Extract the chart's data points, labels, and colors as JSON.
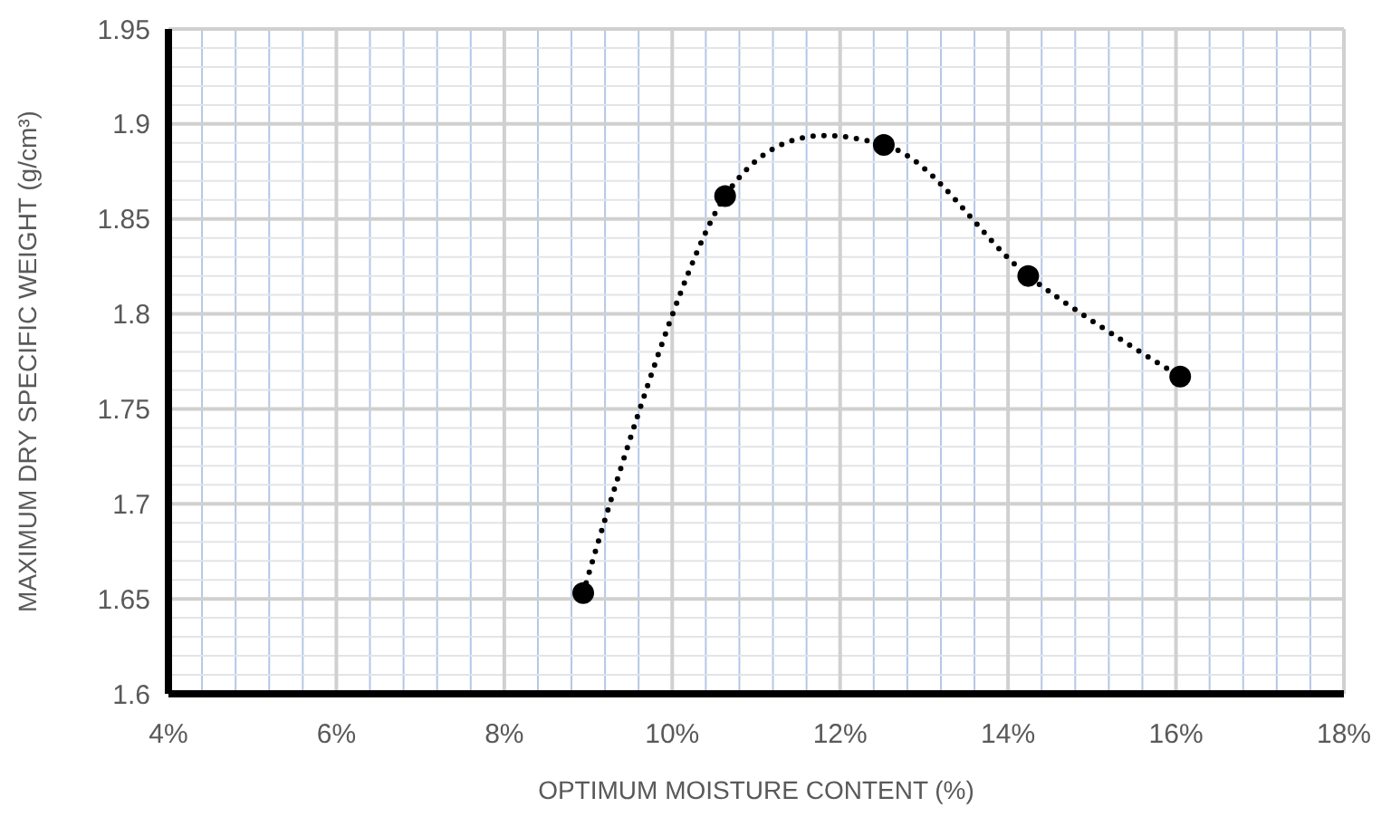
{
  "chart_data": {
    "type": "line",
    "xlabel": "OPTIMUM MOISTURE CONTENT (%)",
    "ylabel": "MAXIMUM DRY SPECIFIC WEIGHT (g/cm³)",
    "x": [
      8.94,
      10.63,
      12.52,
      14.24,
      16.05
    ],
    "series": [
      {
        "color": "#000000",
        "values": [
          1.653,
          1.862,
          1.889,
          1.82,
          1.767
        ]
      }
    ],
    "xlim": [
      4,
      18
    ],
    "xticks": [
      {
        "value": 4,
        "label": "4%"
      },
      {
        "value": 4.4,
        "label": null
      },
      {
        "value": 4.8,
        "label": null
      },
      {
        "value": 5.2,
        "label": null
      },
      {
        "value": 5.6,
        "label": null
      },
      {
        "value": 6,
        "label": "6%"
      },
      {
        "value": 6.4,
        "label": null
      },
      {
        "value": 6.8,
        "label": null
      },
      {
        "value": 7.2,
        "label": null
      },
      {
        "value": 7.6,
        "label": null
      },
      {
        "value": 8,
        "label": "8%"
      },
      {
        "value": 8.4,
        "label": null
      },
      {
        "value": 8.8,
        "label": null
      },
      {
        "value": 9.2,
        "label": null
      },
      {
        "value": 9.6,
        "label": null
      },
      {
        "value": 10,
        "label": "10%"
      },
      {
        "value": 10.4,
        "label": null
      },
      {
        "value": 10.8,
        "label": null
      },
      {
        "value": 11.2,
        "label": null
      },
      {
        "value": 11.6,
        "label": null
      },
      {
        "value": 12,
        "label": "12%"
      },
      {
        "value": 12.4,
        "label": null
      },
      {
        "value": 12.8,
        "label": null
      },
      {
        "value": 13.2,
        "label": null
      },
      {
        "value": 13.6,
        "label": null
      },
      {
        "value": 14,
        "label": "14%"
      },
      {
        "value": 14.4,
        "label": null
      },
      {
        "value": 14.8,
        "label": null
      },
      {
        "value": 15.2,
        "label": null
      },
      {
        "value": 15.6,
        "label": null
      },
      {
        "value": 16,
        "label": "16%"
      },
      {
        "value": 16.4,
        "label": null
      },
      {
        "value": 16.8,
        "label": null
      },
      {
        "value": 17.2,
        "label": null
      },
      {
        "value": 17.6,
        "label": null
      },
      {
        "value": 18,
        "label": "18%"
      }
    ],
    "ylim": [
      1.6,
      1.95
    ],
    "yticks": [
      1.6,
      {
        "value": 1.61,
        "label": null
      },
      {
        "value": 1.62,
        "label": null
      },
      {
        "value": 1.63,
        "label": null
      },
      {
        "value": 1.64,
        "label": null
      },
      1.65,
      {
        "value": 1.66,
        "label": null
      },
      {
        "value": 1.67,
        "label": null
      },
      {
        "value": 1.68,
        "label": null
      },
      {
        "value": 1.69,
        "label": null
      },
      1.7,
      {
        "value": 1.71,
        "label": null
      },
      {
        "value": 1.72,
        "label": null
      },
      {
        "value": 1.73,
        "label": null
      },
      {
        "value": 1.74,
        "label": null
      },
      1.75,
      {
        "value": 1.76,
        "label": null
      },
      {
        "value": 1.77,
        "label": null
      },
      {
        "value": 1.78,
        "label": null
      },
      {
        "value": 1.79,
        "label": null
      },
      1.8,
      {
        "value": 1.81,
        "label": null
      },
      {
        "value": 1.82,
        "label": null
      },
      {
        "value": 1.83,
        "label": null
      },
      {
        "value": 1.84,
        "label": null
      },
      1.85,
      {
        "value": 1.86,
        "label": null
      },
      {
        "value": 1.87,
        "label": null
      },
      {
        "value": 1.88,
        "label": null
      },
      {
        "value": 1.89,
        "label": null
      },
      1.9,
      {
        "value": 1.91,
        "label": null
      },
      {
        "value": 1.92,
        "label": null
      },
      {
        "value": 1.93,
        "label": null
      },
      {
        "value": 1.94,
        "label": null
      },
      1.95
    ],
    "grid": true,
    "marker": "circle",
    "line_style": "dotted"
  }
}
